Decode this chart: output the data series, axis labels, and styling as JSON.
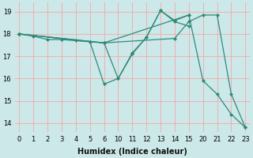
{
  "xlabel": "Humidex (Indice chaleur)",
  "bg_color": "#cce8e8",
  "grid_color": "#ff9999",
  "line_color": "#2e8b7a",
  "xtick_labels": [
    "0",
    "1",
    "2",
    "3",
    "4",
    "5",
    "6",
    "10",
    "11",
    "12",
    "13",
    "14",
    "15",
    "20",
    "21",
    "22",
    "23"
  ],
  "xtick_pos": [
    0,
    1,
    2,
    3,
    4,
    5,
    6,
    7,
    8,
    9,
    10,
    11,
    12,
    13,
    14,
    15,
    16
  ],
  "yticks": [
    14,
    15,
    16,
    17,
    18,
    19
  ],
  "xlim": [
    -0.3,
    16.3
  ],
  "ylim": [
    13.6,
    19.4
  ],
  "series": [
    {
      "xpos": [
        0,
        1,
        2,
        3,
        4,
        5,
        6,
        7,
        8,
        9,
        10,
        11,
        12,
        13,
        14,
        15,
        16
      ],
      "y": [
        18,
        17.9,
        17.75,
        17.75,
        17.7,
        17.65,
        17.6,
        16.0,
        17.1,
        17.85,
        19.05,
        18.6,
        18.85,
        15.9,
        15.3,
        14.4,
        13.8
      ]
    },
    {
      "xpos": [
        0,
        6,
        11,
        12,
        13,
        14,
        15,
        16
      ],
      "y": [
        18,
        17.6,
        17.8,
        18.55,
        18.85,
        18.85,
        15.3,
        13.8
      ]
    },
    {
      "xpos": [
        0,
        5,
        6,
        7,
        8,
        9,
        10,
        11,
        12
      ],
      "y": [
        18,
        17.65,
        15.75,
        16.0,
        17.15,
        17.85,
        19.05,
        18.55,
        18.35
      ]
    },
    {
      "xpos": [
        0,
        6,
        12
      ],
      "y": [
        18,
        17.6,
        18.85
      ]
    }
  ]
}
